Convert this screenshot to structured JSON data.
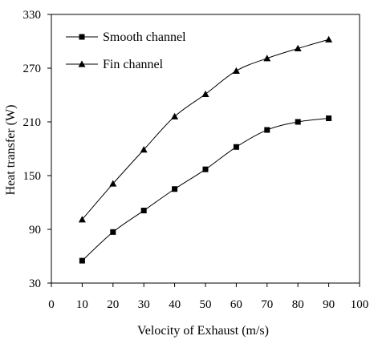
{
  "chart_data": {
    "type": "line",
    "xlabel": "Velocity of Exhaust (m/s)",
    "ylabel": "Heat transfer (W)",
    "xlim": [
      0,
      100
    ],
    "ylim": [
      30,
      330
    ],
    "x_ticks": [
      "0",
      "10",
      "20",
      "30",
      "40",
      "50",
      "60",
      "70",
      "80",
      "90",
      "100"
    ],
    "y_ticks": [
      "30",
      "90",
      "150",
      "210",
      "270",
      "330"
    ],
    "x": [
      10,
      20,
      30,
      40,
      50,
      60,
      70,
      80,
      90
    ],
    "grid": false,
    "legend_position": "top-left",
    "series": [
      {
        "name": "Smooth channel",
        "marker": "square",
        "color": "#000000",
        "values": [
          55,
          87,
          111,
          135,
          157,
          182,
          201,
          210,
          214
        ]
      },
      {
        "name": "Fin channel",
        "marker": "triangle",
        "color": "#000000",
        "values": [
          101,
          141,
          179,
          216,
          241,
          267,
          281,
          292,
          302
        ]
      }
    ]
  }
}
